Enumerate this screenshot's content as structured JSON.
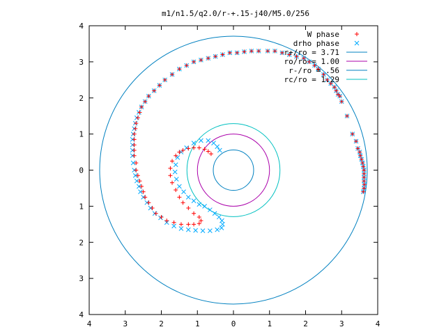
{
  "chart_data": {
    "type": "scatter",
    "title": "m1/n1.5/q2.0/r-+.15-j40/M5.0/256",
    "xlim": [
      -4,
      4
    ],
    "ylim": [
      -4,
      4
    ],
    "x_ticks": [
      -4,
      -3,
      -2,
      -1,
      0,
      1,
      2,
      3,
      4
    ],
    "y_ticks": [
      -4,
      -3,
      -2,
      -1,
      0,
      1,
      2,
      3,
      4
    ],
    "x_tick_labels": [
      "4",
      "3",
      "2",
      "1",
      "0",
      "1",
      "2",
      "3",
      "4"
    ],
    "y_tick_labels": [
      "4",
      "3",
      "2",
      "1",
      "0",
      "1",
      "2",
      "3",
      "4"
    ],
    "grid": false,
    "legend_position": "top-right",
    "series": [
      {
        "name": "W phase",
        "kind": "points",
        "marker": "plus",
        "color": "#ff0000",
        "points": [
          [
            3.6,
            -0.6
          ],
          [
            3.62,
            -0.5
          ],
          [
            3.63,
            -0.4
          ],
          [
            3.62,
            -0.3
          ],
          [
            3.62,
            -0.2
          ],
          [
            3.62,
            -0.1
          ],
          [
            3.62,
            0.0
          ],
          [
            3.6,
            0.1
          ],
          [
            3.58,
            0.2
          ],
          [
            3.55,
            0.3
          ],
          [
            3.52,
            0.4
          ],
          [
            3.5,
            0.5
          ],
          [
            3.45,
            0.6
          ],
          [
            3.4,
            0.8
          ],
          [
            3.3,
            1.0
          ],
          [
            3.15,
            1.5
          ],
          [
            3.0,
            1.9
          ],
          [
            2.95,
            2.05
          ],
          [
            2.9,
            2.1
          ],
          [
            2.85,
            2.2
          ],
          [
            2.8,
            2.3
          ],
          [
            2.7,
            2.4
          ],
          [
            2.6,
            2.5
          ],
          [
            2.5,
            2.65
          ],
          [
            2.35,
            2.8
          ],
          [
            2.25,
            2.9
          ],
          [
            2.1,
            3.0
          ],
          [
            1.95,
            3.1
          ],
          [
            1.75,
            3.15
          ],
          [
            1.55,
            3.2
          ],
          [
            1.35,
            3.25
          ],
          [
            1.15,
            3.3
          ],
          [
            0.95,
            3.3
          ],
          [
            0.7,
            3.3
          ],
          [
            0.5,
            3.3
          ],
          [
            0.3,
            3.28
          ],
          [
            0.1,
            3.25
          ],
          [
            -0.1,
            3.25
          ],
          [
            -0.3,
            3.2
          ],
          [
            -0.5,
            3.15
          ],
          [
            -0.7,
            3.1
          ],
          [
            -0.9,
            3.05
          ],
          [
            -1.1,
            3.0
          ],
          [
            -1.3,
            2.9
          ],
          [
            -1.5,
            2.8
          ],
          [
            -1.7,
            2.65
          ],
          [
            -1.9,
            2.5
          ],
          [
            -2.05,
            2.35
          ],
          [
            -2.2,
            2.2
          ],
          [
            -2.35,
            2.05
          ],
          [
            -2.45,
            1.9
          ],
          [
            -2.55,
            1.75
          ],
          [
            -2.6,
            1.6
          ],
          [
            -2.65,
            1.45
          ],
          [
            -2.7,
            1.3
          ],
          [
            -2.72,
            1.15
          ],
          [
            -2.75,
            1.0
          ],
          [
            -2.75,
            0.85
          ],
          [
            -2.75,
            0.7
          ],
          [
            -2.75,
            0.55
          ],
          [
            -2.75,
            0.4
          ],
          [
            -2.7,
            0.2
          ],
          [
            -2.7,
            0.0
          ],
          [
            -2.65,
            -0.15
          ],
          [
            -2.6,
            -0.3
          ],
          [
            -2.55,
            -0.45
          ],
          [
            -2.5,
            -0.6
          ],
          [
            -2.45,
            -0.75
          ],
          [
            -2.35,
            -0.9
          ],
          [
            -2.25,
            -1.05
          ],
          [
            -2.15,
            -1.2
          ],
          [
            -2.0,
            -1.3
          ],
          [
            -1.85,
            -1.4
          ],
          [
            -1.65,
            -1.45
          ],
          [
            -1.45,
            -1.5
          ],
          [
            -1.25,
            -1.5
          ],
          [
            -1.1,
            -1.5
          ],
          [
            -0.95,
            -1.48
          ],
          [
            -0.9,
            -1.4
          ],
          [
            -0.95,
            -1.3
          ],
          [
            -1.1,
            -1.2
          ],
          [
            -1.25,
            -1.05
          ],
          [
            -1.4,
            -0.9
          ],
          [
            -1.5,
            -0.75
          ],
          [
            -1.6,
            -0.55
          ],
          [
            -1.7,
            -0.35
          ],
          [
            -1.75,
            -0.15
          ],
          [
            -1.75,
            0.05
          ],
          [
            -1.7,
            0.25
          ],
          [
            -1.6,
            0.4
          ],
          [
            -1.5,
            0.5
          ],
          [
            -1.4,
            0.55
          ],
          [
            -1.25,
            0.6
          ],
          [
            -1.1,
            0.62
          ],
          [
            -0.95,
            0.62
          ],
          [
            -0.8,
            0.58
          ],
          [
            -0.7,
            0.52
          ],
          [
            -0.62,
            0.45
          ]
        ]
      },
      {
        "name": "drho phase",
        "kind": "points",
        "marker": "cross",
        "color": "#00aaff",
        "points": [
          [
            3.6,
            -0.6
          ],
          [
            3.62,
            -0.5
          ],
          [
            3.63,
            -0.4
          ],
          [
            3.62,
            -0.3
          ],
          [
            3.62,
            -0.2
          ],
          [
            3.62,
            -0.1
          ],
          [
            3.62,
            0.0
          ],
          [
            3.6,
            0.1
          ],
          [
            3.58,
            0.2
          ],
          [
            3.55,
            0.3
          ],
          [
            3.52,
            0.4
          ],
          [
            3.5,
            0.5
          ],
          [
            3.45,
            0.6
          ],
          [
            3.4,
            0.8
          ],
          [
            3.3,
            1.0
          ],
          [
            3.15,
            1.5
          ],
          [
            3.0,
            1.9
          ],
          [
            2.95,
            2.05
          ],
          [
            2.9,
            2.1
          ],
          [
            2.85,
            2.2
          ],
          [
            2.8,
            2.3
          ],
          [
            2.7,
            2.4
          ],
          [
            2.6,
            2.5
          ],
          [
            2.5,
            2.65
          ],
          [
            2.35,
            2.8
          ],
          [
            2.25,
            2.9
          ],
          [
            2.1,
            3.0
          ],
          [
            1.95,
            3.1
          ],
          [
            1.75,
            3.15
          ],
          [
            1.55,
            3.2
          ],
          [
            1.35,
            3.25
          ],
          [
            1.15,
            3.3
          ],
          [
            0.95,
            3.3
          ],
          [
            0.7,
            3.3
          ],
          [
            0.5,
            3.3
          ],
          [
            0.3,
            3.28
          ],
          [
            0.1,
            3.25
          ],
          [
            -0.1,
            3.25
          ],
          [
            -0.3,
            3.2
          ],
          [
            -0.5,
            3.15
          ],
          [
            -0.7,
            3.1
          ],
          [
            -0.9,
            3.05
          ],
          [
            -1.1,
            3.0
          ],
          [
            -1.3,
            2.9
          ],
          [
            -1.5,
            2.8
          ],
          [
            -1.7,
            2.65
          ],
          [
            -1.9,
            2.5
          ],
          [
            -2.05,
            2.35
          ],
          [
            -2.2,
            2.2
          ],
          [
            -2.35,
            2.05
          ],
          [
            -2.45,
            1.9
          ],
          [
            -2.55,
            1.75
          ],
          [
            -2.62,
            1.6
          ],
          [
            -2.68,
            1.45
          ],
          [
            -2.72,
            1.3
          ],
          [
            -2.75,
            1.15
          ],
          [
            -2.78,
            1.0
          ],
          [
            -2.8,
            0.85
          ],
          [
            -2.8,
            0.7
          ],
          [
            -2.8,
            0.55
          ],
          [
            -2.8,
            0.4
          ],
          [
            -2.78,
            0.2
          ],
          [
            -2.75,
            0.0
          ],
          [
            -2.72,
            -0.15
          ],
          [
            -2.68,
            -0.3
          ],
          [
            -2.62,
            -0.45
          ],
          [
            -2.58,
            -0.6
          ],
          [
            -2.5,
            -0.75
          ],
          [
            -2.4,
            -0.9
          ],
          [
            -2.3,
            -1.05
          ],
          [
            -2.18,
            -1.2
          ],
          [
            -2.02,
            -1.32
          ],
          [
            -1.85,
            -1.45
          ],
          [
            -1.65,
            -1.55
          ],
          [
            -1.45,
            -1.62
          ],
          [
            -1.25,
            -1.65
          ],
          [
            -1.05,
            -1.67
          ],
          [
            -0.85,
            -1.68
          ],
          [
            -0.65,
            -1.68
          ],
          [
            -0.45,
            -1.65
          ],
          [
            -0.33,
            -1.6
          ],
          [
            -0.3,
            -1.5
          ],
          [
            -0.32,
            -1.4
          ],
          [
            -0.4,
            -1.3
          ],
          [
            -0.52,
            -1.2
          ],
          [
            -0.65,
            -1.1
          ],
          [
            -0.8,
            -1.0
          ],
          [
            -0.95,
            -0.95
          ],
          [
            -1.1,
            -0.85
          ],
          [
            -1.25,
            -0.75
          ],
          [
            -1.38,
            -0.6
          ],
          [
            -1.5,
            -0.45
          ],
          [
            -1.58,
            -0.25
          ],
          [
            -1.62,
            -0.05
          ],
          [
            -1.6,
            0.15
          ],
          [
            -1.55,
            0.35
          ],
          [
            -1.45,
            0.5
          ],
          [
            -1.3,
            0.62
          ],
          [
            -1.1,
            0.75
          ],
          [
            -0.9,
            0.82
          ],
          [
            -0.7,
            0.82
          ],
          [
            -0.55,
            0.75
          ],
          [
            -0.45,
            0.65
          ],
          [
            -0.38,
            0.55
          ]
        ]
      },
      {
        "name": "r+/ro = 3.71",
        "kind": "circle",
        "radius": 3.71,
        "color": "#0080c0"
      },
      {
        "name": "ro/ro = 1.00",
        "kind": "circle",
        "radius": 1.0,
        "color": "#aa00aa"
      },
      {
        "name": "r-/ro = .56",
        "kind": "circle",
        "radius": 0.56,
        "color": "#0080c0"
      },
      {
        "name": "rc/ro = 1.29",
        "kind": "circle",
        "radius": 1.29,
        "color": "#00c0c0"
      }
    ]
  }
}
